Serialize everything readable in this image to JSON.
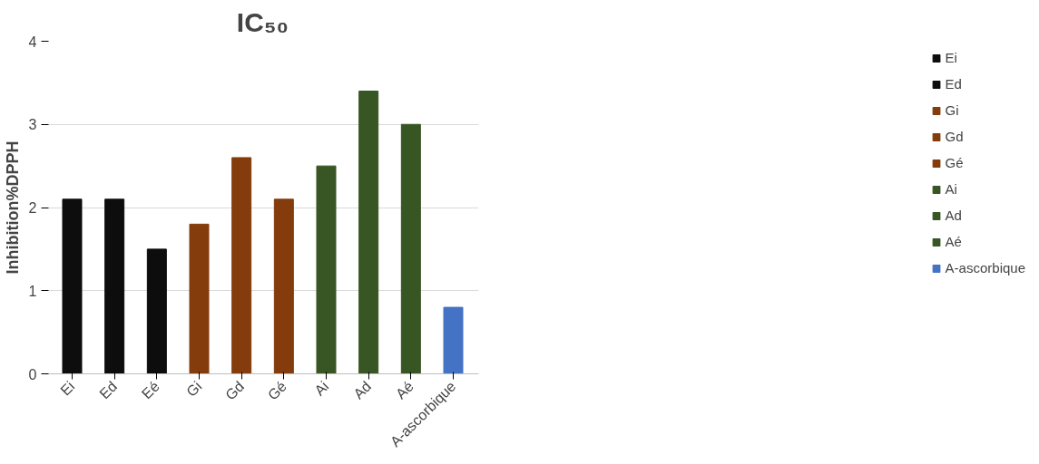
{
  "chart_data": {
    "type": "bar",
    "title": "IC₅₀",
    "ylabel": "Inhibition%DPPH",
    "categories": [
      "Ei",
      "Ed",
      "Eé",
      "Gi",
      "Gd",
      "Gé",
      "Ai",
      "Ad",
      "Aé",
      "A-ascorbique"
    ],
    "series": [
      {
        "name": "Ei",
        "color": "#0d0d0d",
        "values": [
          2.1,
          null,
          null,
          null,
          null,
          null,
          null,
          null,
          null,
          null
        ]
      },
      {
        "name": "Ed",
        "color": "#0d0d0d",
        "values": [
          null,
          2.1,
          null,
          null,
          null,
          null,
          null,
          null,
          null,
          null
        ]
      },
      {
        "color": "#0d0d0d",
        "values": [
          null,
          null,
          1.5,
          null,
          null,
          null,
          null,
          null,
          null,
          null
        ]
      },
      {
        "name": "Gi",
        "color": "#843c0c",
        "values": [
          null,
          null,
          null,
          1.8,
          null,
          null,
          null,
          null,
          null,
          null
        ]
      },
      {
        "name": "Gd",
        "color": "#843c0c",
        "values": [
          null,
          null,
          null,
          null,
          2.6,
          null,
          null,
          null,
          null,
          null
        ]
      },
      {
        "name": "Gé",
        "color": "#843c0c",
        "values": [
          null,
          null,
          null,
          null,
          null,
          2.1,
          null,
          null,
          null,
          null
        ]
      },
      {
        "name": "Ai",
        "color": "#375623",
        "values": [
          null,
          null,
          null,
          null,
          null,
          null,
          2.5,
          null,
          null,
          null
        ]
      },
      {
        "name": "Ad",
        "color": "#375623",
        "values": [
          null,
          null,
          null,
          null,
          null,
          null,
          null,
          3.4,
          null,
          null
        ]
      },
      {
        "name": "Aé",
        "color": "#375623",
        "values": [
          null,
          null,
          null,
          null,
          null,
          null,
          null,
          null,
          3.0,
          null
        ]
      },
      {
        "name": "A-ascorbique",
        "color": "#4472c4",
        "values": [
          null,
          null,
          null,
          null,
          null,
          null,
          null,
          null,
          null,
          0.8
        ]
      }
    ],
    "ylim": [
      0,
      4
    ],
    "yticks": [
      0,
      1,
      2,
      3,
      4
    ],
    "grid": "y",
    "legend": "right"
  }
}
